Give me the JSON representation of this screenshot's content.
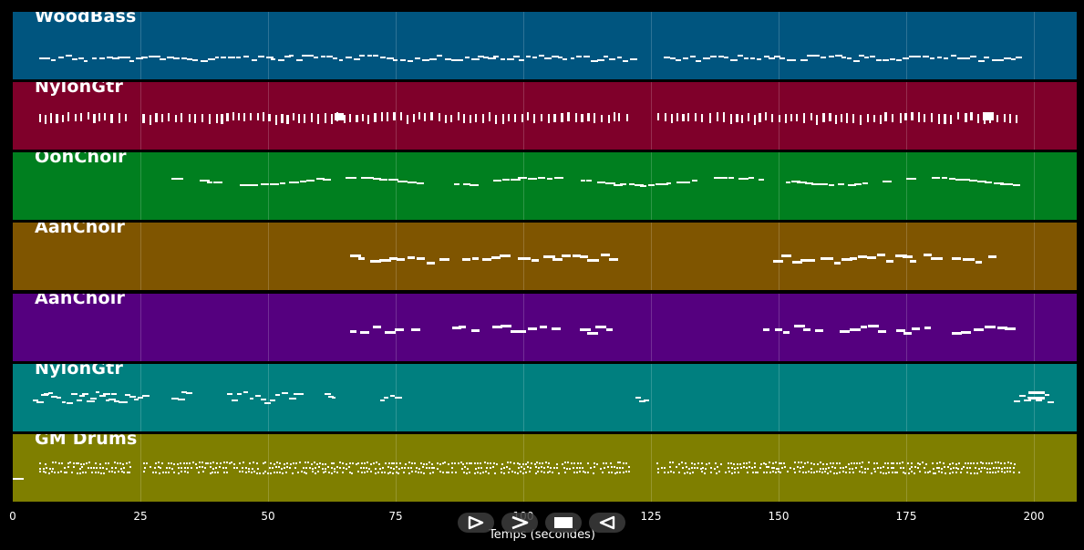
{
  "tracks": [
    {
      "name": "WoodBass",
      "color": "#00557f"
    },
    {
      "name": "NylonGtr",
      "color": "#7f002a"
    },
    {
      "name": "OohChoir",
      "color": "#007f1f"
    },
    {
      "name": "AahChoir",
      "color": "#7f5500"
    },
    {
      "name": "AahChoir",
      "color": "#55007f"
    },
    {
      "name": "NylonGtr",
      "color": "#007f7f"
    },
    {
      "name": "GM Drums",
      "color": "#7f7f00"
    }
  ],
  "xaxis": {
    "label": "Temps (secondes)",
    "ticks": [
      "0",
      "25",
      "50",
      "75",
      "100",
      "125",
      "150",
      "175",
      "200"
    ]
  },
  "controls": [
    {
      "name": "play-button",
      "icon": "play-outline-icon"
    },
    {
      "name": "fast-forward-button",
      "icon": "chevron-right-icon"
    },
    {
      "name": "stop-button",
      "icon": "stop-icon"
    },
    {
      "name": "rewind-button",
      "icon": "rewind-icon"
    }
  ]
}
